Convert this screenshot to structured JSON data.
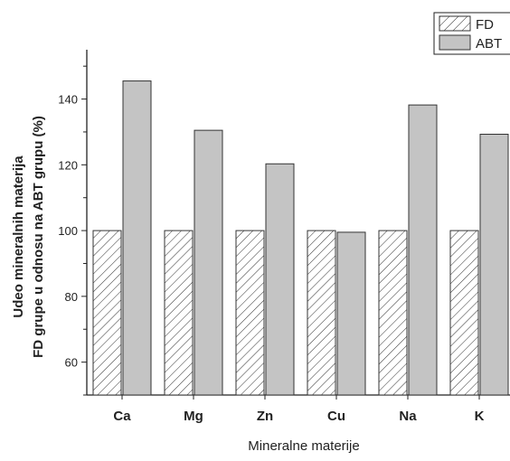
{
  "chart_data": {
    "type": "bar",
    "categories": [
      "Ca",
      "Mg",
      "Zn",
      "Cu",
      "Na",
      "K"
    ],
    "series": [
      {
        "name": "FD",
        "values": [
          100,
          100,
          100,
          100,
          100,
          100
        ],
        "fill": "hatch",
        "color": "#ffffff"
      },
      {
        "name": "ABT",
        "values": [
          145.5,
          130.5,
          120.3,
          99.5,
          138.2,
          129.3
        ],
        "fill": "solid",
        "color": "#c4c4c4"
      }
    ],
    "xlabel": "Mineralne materije",
    "ylabel_line1": "Udeo mineralnih materija",
    "ylabel_line2": "FD grupe u odnosu na ABT grupu (%)",
    "ylim": [
      50,
      155
    ],
    "yticks": [
      60,
      80,
      100,
      120,
      140
    ],
    "legend_position": "top-right",
    "grid": false
  }
}
